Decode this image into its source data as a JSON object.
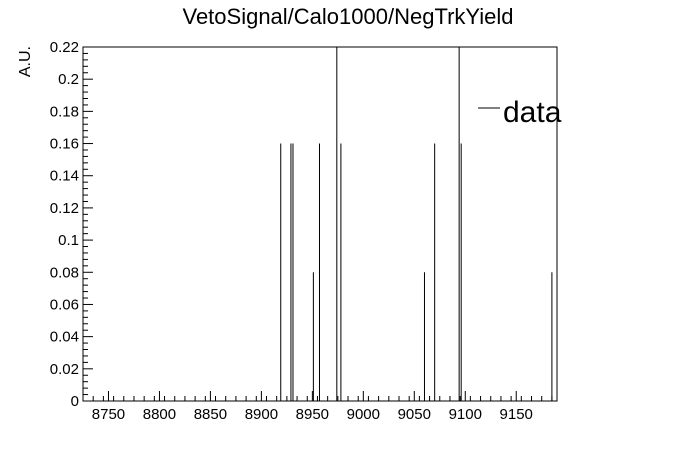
{
  "chart_data": {
    "type": "bar",
    "title": "VetoSignal/Calo1000/NegTrkYield",
    "xlabel": "",
    "ylabel": "A.U.",
    "xlim": [
      8725,
      9190
    ],
    "ylim": [
      0,
      0.22
    ],
    "x_ticks": [
      8750,
      8800,
      8850,
      8900,
      8950,
      9000,
      9050,
      9100,
      9150
    ],
    "x_tick_labels": [
      "8750",
      "8800",
      "8850",
      "8900",
      "8950",
      "9000",
      "9050",
      "9100",
      "9150"
    ],
    "y_ticks": [
      0,
      0.02,
      0.04,
      0.06,
      0.08,
      0.1,
      0.12,
      0.14,
      0.16,
      0.18,
      0.2,
      0.22
    ],
    "y_tick_labels": [
      "0",
      "0.02",
      "0.04",
      "0.06",
      "0.08",
      "0.1",
      "0.12",
      "0.14",
      "0.16",
      "0.18",
      "0.2",
      "0.22"
    ],
    "legend": {
      "label": "data",
      "position": "top-right"
    },
    "grid": false,
    "series": [
      {
        "name": "data",
        "x": [
          8919,
          8929,
          8931,
          8951,
          8957,
          8974,
          8978,
          9060,
          9070,
          9094,
          9096,
          9185
        ],
        "values": [
          0.16,
          0.16,
          0.16,
          0.08,
          0.16,
          0.22,
          0.16,
          0.08,
          0.16,
          0.22,
          0.16,
          0.08
        ]
      }
    ]
  }
}
